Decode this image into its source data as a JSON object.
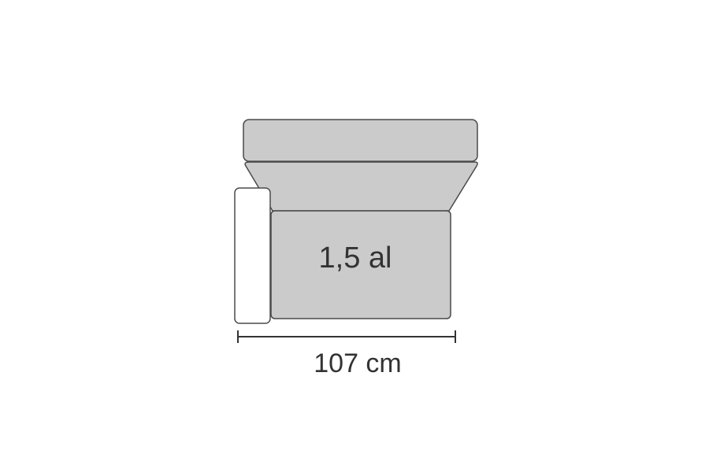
{
  "diagram": {
    "module_label": "1,5 al",
    "dimension_label": "107 cm"
  },
  "colors": {
    "cushion_fill": "#cbcbcb",
    "armrest_fill": "#ffffff",
    "outline": "#4a4a4a",
    "dimension_line": "#333333",
    "text": "#333333"
  }
}
